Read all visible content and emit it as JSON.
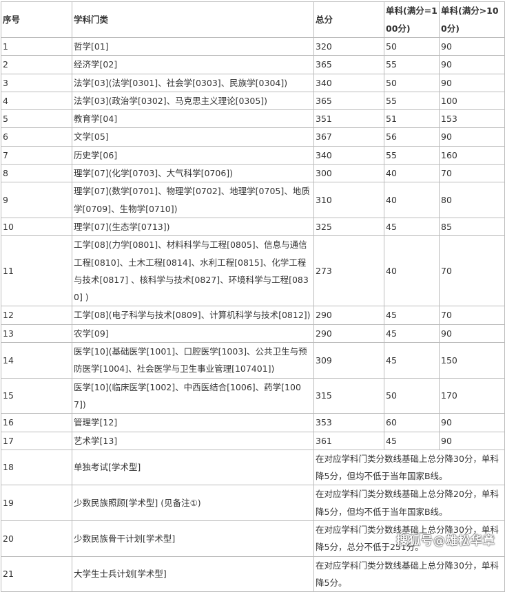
{
  "headers": [
    "序号",
    "学科门类",
    "总分",
    "单科(满分=100分)",
    "单科(满分>100分)"
  ],
  "rows": [
    [
      "1",
      "哲学[01]",
      "320",
      "50",
      "90"
    ],
    [
      "2",
      "经济学[02]",
      "365",
      "55",
      "90"
    ],
    [
      "3",
      "法学[03](法学[0301]、社会学[0303]、民族学[0304])",
      "340",
      "50",
      "90"
    ],
    [
      "4",
      "法学[03](政治学[0302]、马克思主义理论[0305])",
      "365",
      "55",
      "100"
    ],
    [
      "5",
      "教育学[04]",
      "351",
      "51",
      "153"
    ],
    [
      "6",
      "文学[05]",
      "367",
      "56",
      "90"
    ],
    [
      "7",
      "历史学[06]",
      "340",
      "55",
      "160"
    ],
    [
      "8",
      "理学[07](化学[0703]、大气科学[0706])",
      "300",
      "40",
      "70"
    ],
    [
      "9",
      "理学[07](数学[0701]、物理学[0702]、地理学[0705]、地质学[0709]、生物学[0710])",
      "310",
      "40",
      "80"
    ],
    [
      "10",
      "理学[07](生态学[0713])",
      "325",
      "45",
      "85"
    ],
    [
      "11",
      "工学[08](力学[0801]、材料科学与工程[0805]、信息与通信工程[0810]、土木工程[0814]、水利工程[0815]、化学工程与技术[0817] 、核科学与技术[0827]、环境科学与工程[0830] )",
      "273",
      "40",
      "70"
    ],
    [
      "12",
      "工学[08](电子科学与技术[0809]、计算机科学与技术[0812])",
      "290",
      "45",
      "70"
    ],
    [
      "13",
      "农学[09]",
      "290",
      "45",
      "90"
    ],
    [
      "14",
      "医学[10](基础医学[1001]、口腔医学[1003]、公共卫生与预防医学[1004]、社会医学与卫生事业管理[107401])",
      "309",
      "45",
      "150"
    ],
    [
      "15",
      "医学[10](临床医学[1002]、中西医结合[1006]、药学[1007])",
      "315",
      "50",
      "170"
    ],
    [
      "16",
      "管理学[12]",
      "353",
      "60",
      "90"
    ],
    [
      "17",
      "艺术学[13]",
      "361",
      "45",
      "90"
    ]
  ],
  "special_rows": [
    [
      "18",
      "单独考试[学术型]",
      "在对应学科门类分数线基础上总分降30分，单科降5分，但均不低于当年国家B线。"
    ],
    [
      "19",
      "少数民族照顾[学术型] (见备注①)",
      "在对应学科门类分数线基础上总分降20分，单科降5分，但均不低于当年国家B线。"
    ],
    [
      "20",
      "少数民族骨干计划[学术型]",
      "在对应学科门类分数线基础上总分降30分，单科降5分，总分不低于251分。"
    ],
    [
      "21",
      "大学生士兵计划[学术型]",
      "在对应学科门类分数线基础上总分降30分，单科降5分。"
    ]
  ],
  "watermark": "搜狐号@雄松华章"
}
